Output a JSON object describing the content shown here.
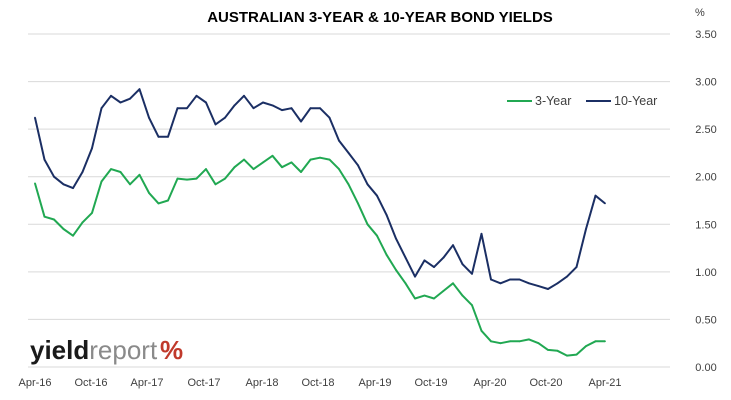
{
  "chart_data": {
    "type": "line",
    "title": "AUSTRALIAN 3-YEAR & 10-YEAR BOND YIELDS",
    "y_unit_label": "%",
    "ylim": [
      0,
      3.5
    ],
    "y_ticks": [
      "0.00",
      "0.50",
      "1.00",
      "1.50",
      "2.00",
      "2.50",
      "3.00",
      "3.50"
    ],
    "y_tick_values": [
      0,
      0.5,
      1,
      1.5,
      2,
      2.5,
      3,
      3.5
    ],
    "y_axis_side": "right",
    "x_ticks": [
      "Apr-16",
      "Oct-16",
      "Apr-17",
      "Oct-17",
      "Apr-18",
      "Oct-18",
      "Apr-19",
      "Oct-19",
      "Apr-20",
      "Oct-20",
      "Apr-21"
    ],
    "x_tick_dates": [
      "2016-04",
      "2016-10",
      "2017-04",
      "2017-10",
      "2018-04",
      "2018-10",
      "2019-04",
      "2019-10",
      "2020-04",
      "2020-10",
      "2021-04"
    ],
    "grid": "horizontal",
    "legend": "top-right",
    "colors": {
      "three_year": "#21a852",
      "ten_year": "#1b2f64",
      "grid": "#d9d9d9",
      "logo_percent": "#c0392b",
      "logo_accent": "#2e8b3d"
    },
    "series": [
      {
        "name": "3-Year",
        "color": "#21a852",
        "x": [
          "2016-04",
          "2016-05",
          "2016-06",
          "2016-07",
          "2016-08",
          "2016-09",
          "2016-10",
          "2016-11",
          "2016-12",
          "2017-01",
          "2017-02",
          "2017-03",
          "2017-04",
          "2017-05",
          "2017-06",
          "2017-07",
          "2017-08",
          "2017-09",
          "2017-10",
          "2017-11",
          "2017-12",
          "2018-01",
          "2018-02",
          "2018-03",
          "2018-04",
          "2018-05",
          "2018-06",
          "2018-07",
          "2018-08",
          "2018-09",
          "2018-10",
          "2018-11",
          "2018-12",
          "2019-01",
          "2019-02",
          "2019-03",
          "2019-04",
          "2019-05",
          "2019-06",
          "2019-07",
          "2019-08",
          "2019-09",
          "2019-10",
          "2019-11",
          "2019-12",
          "2020-01",
          "2020-02",
          "2020-03",
          "2020-04",
          "2020-05",
          "2020-06",
          "2020-07",
          "2020-08",
          "2020-09",
          "2020-10",
          "2020-11",
          "2020-12",
          "2021-01",
          "2021-02",
          "2021-03",
          "2021-04"
        ],
        "values": [
          1.93,
          1.58,
          1.55,
          1.45,
          1.38,
          1.52,
          1.62,
          1.95,
          2.08,
          2.05,
          1.92,
          2.02,
          1.83,
          1.72,
          1.75,
          1.98,
          1.97,
          1.98,
          2.08,
          1.92,
          1.98,
          2.1,
          2.18,
          2.08,
          2.15,
          2.22,
          2.1,
          2.15,
          2.05,
          2.18,
          2.2,
          2.18,
          2.08,
          1.92,
          1.72,
          1.5,
          1.38,
          1.18,
          1.02,
          0.88,
          0.72,
          0.75,
          0.72,
          0.8,
          0.88,
          0.75,
          0.65,
          0.38,
          0.27,
          0.25,
          0.27,
          0.27,
          0.29,
          0.25,
          0.18,
          0.17,
          0.12,
          0.13,
          0.22,
          0.27,
          0.27
        ]
      },
      {
        "name": "10-Year",
        "color": "#1b2f64",
        "x": [
          "2016-04",
          "2016-05",
          "2016-06",
          "2016-07",
          "2016-08",
          "2016-09",
          "2016-10",
          "2016-11",
          "2016-12",
          "2017-01",
          "2017-02",
          "2017-03",
          "2017-04",
          "2017-05",
          "2017-06",
          "2017-07",
          "2017-08",
          "2017-09",
          "2017-10",
          "2017-11",
          "2017-12",
          "2018-01",
          "2018-02",
          "2018-03",
          "2018-04",
          "2018-05",
          "2018-06",
          "2018-07",
          "2018-08",
          "2018-09",
          "2018-10",
          "2018-11",
          "2018-12",
          "2019-01",
          "2019-02",
          "2019-03",
          "2019-04",
          "2019-05",
          "2019-06",
          "2019-07",
          "2019-08",
          "2019-09",
          "2019-10",
          "2019-11",
          "2019-12",
          "2020-01",
          "2020-02",
          "2020-03",
          "2020-04",
          "2020-05",
          "2020-06",
          "2020-07",
          "2020-08",
          "2020-09",
          "2020-10",
          "2020-11",
          "2020-12",
          "2021-01",
          "2021-02",
          "2021-03",
          "2021-04"
        ],
        "values": [
          2.62,
          2.18,
          2.0,
          1.92,
          1.88,
          2.05,
          2.3,
          2.72,
          2.85,
          2.78,
          2.82,
          2.92,
          2.62,
          2.42,
          2.42,
          2.72,
          2.72,
          2.85,
          2.78,
          2.55,
          2.62,
          2.75,
          2.85,
          2.72,
          2.78,
          2.75,
          2.7,
          2.72,
          2.58,
          2.72,
          2.72,
          2.62,
          2.38,
          2.25,
          2.12,
          1.92,
          1.8,
          1.6,
          1.35,
          1.15,
          0.95,
          1.12,
          1.05,
          1.15,
          1.28,
          1.08,
          0.98,
          1.4,
          0.92,
          0.88,
          0.92,
          0.92,
          0.88,
          0.85,
          0.82,
          0.88,
          0.95,
          1.05,
          1.45,
          1.8,
          1.72
        ]
      }
    ]
  },
  "logo": {
    "text_bold": "yield",
    "text_light": "report",
    "symbol": "%"
  }
}
